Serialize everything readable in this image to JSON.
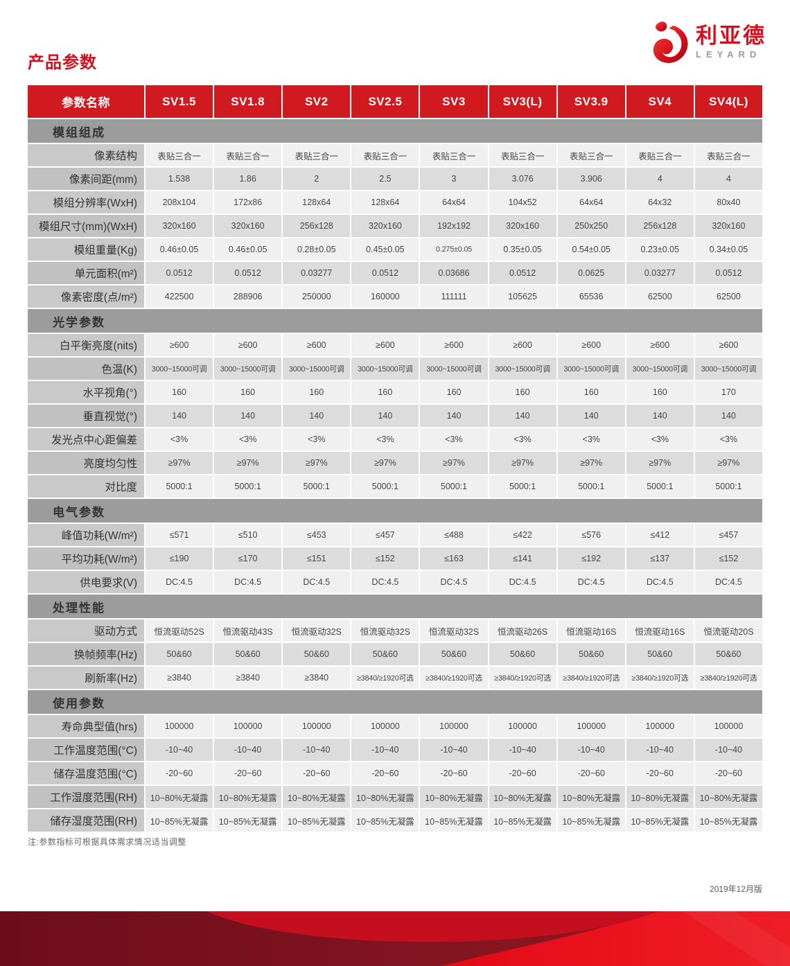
{
  "page": {
    "title": "产品参数",
    "note": "注:参数指标可根据具体需求情况适当调整",
    "version": "2019年12月版"
  },
  "logo": {
    "cn": "利亚德",
    "en": "LEYARD"
  },
  "colors": {
    "brand_red": "#d30f1e",
    "header_red": "#d11920",
    "section_gray": "#9c9c9c",
    "row_light": "#f0f0f0",
    "row_dark": "#dcdcdc",
    "label_light": "#c9c9c9",
    "label_dark": "#c1c1c1",
    "wave_dark_red": "#7a1220",
    "wave_bright_red": "#e30917"
  },
  "table": {
    "header": [
      "参数名称",
      "SV1.5",
      "SV1.8",
      "SV2",
      "SV2.5",
      "SV3",
      "SV3(L)",
      "SV3.9",
      "SV4",
      "SV4(L)"
    ],
    "sections": [
      {
        "title": "模组组成",
        "rows": [
          {
            "label": "像素结构",
            "values": [
              "表贴三合一",
              "表贴三合一",
              "表贴三合一",
              "表贴三合一",
              "表贴三合一",
              "表贴三合一",
              "表贴三合一",
              "表贴三合一",
              "表贴三合一"
            ]
          },
          {
            "label": "像素间距(mm)",
            "values": [
              "1.538",
              "1.86",
              "2",
              "2.5",
              "3",
              "3.076",
              "3.906",
              "4",
              "4"
            ]
          },
          {
            "label": "模组分辨率(WxH)",
            "values": [
              "208x104",
              "172x86",
              "128x64",
              "128x64",
              "64x64",
              "104x52",
              "64x64",
              "64x32",
              "80x40"
            ]
          },
          {
            "label": "模组尺寸(mm)(WxH)",
            "values": [
              "320x160",
              "320x160",
              "256x128",
              "320x160",
              "192x192",
              "320x160",
              "250x250",
              "256x128",
              "320x160"
            ]
          },
          {
            "label": "模组重量(Kg)",
            "values": [
              "0.46±0.05",
              "0.46±0.05",
              "0.28±0.05",
              "0.45±0.05",
              "0.275±0.05",
              "0.35±0.05",
              "0.54±0.05",
              "0.23±0.05",
              "0.34±0.05"
            ]
          },
          {
            "label": "单元面积(m²)",
            "values": [
              "0.0512",
              "0.0512",
              "0.03277",
              "0.0512",
              "0.03686",
              "0.0512",
              "0.0625",
              "0.03277",
              "0.0512"
            ]
          },
          {
            "label": "像素密度(点/m²)",
            "values": [
              "422500",
              "288906",
              "250000",
              "160000",
              "111111",
              "105625",
              "65536",
              "62500",
              "62500"
            ]
          }
        ]
      },
      {
        "title": "光学参数",
        "rows": [
          {
            "label": "白平衡亮度(nits)",
            "values": [
              "≥600",
              "≥600",
              "≥600",
              "≥600",
              "≥600",
              "≥600",
              "≥600",
              "≥600",
              "≥600"
            ]
          },
          {
            "label": "色温(K)",
            "values": [
              "3000~15000可调",
              "3000~15000可调",
              "3000~15000可调",
              "3000~15000可调",
              "3000~15000可调",
              "3000~15000可调",
              "3000~15000可调",
              "3000~15000可调",
              "3000~15000可调"
            ]
          },
          {
            "label": "水平视角(°)",
            "values": [
              "160",
              "160",
              "160",
              "160",
              "160",
              "160",
              "160",
              "160",
              "170"
            ]
          },
          {
            "label": "垂直视觉(°)",
            "values": [
              "140",
              "140",
              "140",
              "140",
              "140",
              "140",
              "140",
              "140",
              "140"
            ]
          },
          {
            "label": "发光点中心距偏差",
            "values": [
              "<3%",
              "<3%",
              "<3%",
              "<3%",
              "<3%",
              "<3%",
              "<3%",
              "<3%",
              "<3%"
            ]
          },
          {
            "label": "亮度均匀性",
            "values": [
              "≥97%",
              "≥97%",
              "≥97%",
              "≥97%",
              "≥97%",
              "≥97%",
              "≥97%",
              "≥97%",
              "≥97%"
            ]
          },
          {
            "label": "对比度",
            "values": [
              "5000:1",
              "5000:1",
              "5000:1",
              "5000:1",
              "5000:1",
              "5000:1",
              "5000:1",
              "5000:1",
              "5000:1"
            ]
          }
        ]
      },
      {
        "title": "电气参数",
        "rows": [
          {
            "label": "峰值功耗(W/m²)",
            "values": [
              "≤571",
              "≤510",
              "≤453",
              "≤457",
              "≤488",
              "≤422",
              "≤576",
              "≤412",
              "≤457"
            ]
          },
          {
            "label": "平均功耗(W/m²)",
            "values": [
              "≤190",
              "≤170",
              "≤151",
              "≤152",
              "≤163",
              "≤141",
              "≤192",
              "≤137",
              "≤152"
            ]
          },
          {
            "label": "供电要求(V)",
            "values": [
              "DC:4.5",
              "DC:4.5",
              "DC:4.5",
              "DC:4.5",
              "DC:4.5",
              "DC:4.5",
              "DC:4.5",
              "DC:4.5",
              "DC:4.5"
            ]
          }
        ]
      },
      {
        "title": "处理性能",
        "rows": [
          {
            "label": "驱动方式",
            "values": [
              "恒流驱动52S",
              "恒流驱动43S",
              "恒流驱动32S",
              "恒流驱动32S",
              "恒流驱动32S",
              "恒流驱动26S",
              "恒流驱动16S",
              "恒流驱动16S",
              "恒流驱动20S"
            ]
          },
          {
            "label": "换帧频率(Hz)",
            "values": [
              "50&60",
              "50&60",
              "50&60",
              "50&60",
              "50&60",
              "50&60",
              "50&60",
              "50&60",
              "50&60"
            ]
          },
          {
            "label": "刷新率(Hz)",
            "values": [
              "≥3840",
              "≥3840",
              "≥3840",
              "≥3840/≥1920可选",
              "≥3840/≥1920可选",
              "≥3840/≥1920可选",
              "≥3840/≥1920可选",
              "≥3840/≥1920可选",
              "≥3840/≥1920可选"
            ]
          }
        ]
      },
      {
        "title": "使用参数",
        "rows": [
          {
            "label": "寿命典型值(hrs)",
            "values": [
              "100000",
              "100000",
              "100000",
              "100000",
              "100000",
              "100000",
              "100000",
              "100000",
              "100000"
            ]
          },
          {
            "label": "工作温度范围(°C)",
            "values": [
              "-10~40",
              "-10~40",
              "-10~40",
              "-10~40",
              "-10~40",
              "-10~40",
              "-10~40",
              "-10~40",
              "-10~40"
            ]
          },
          {
            "label": "储存温度范围(°C)",
            "values": [
              "-20~60",
              "-20~60",
              "-20~60",
              "-20~60",
              "-20~60",
              "-20~60",
              "-20~60",
              "-20~60",
              "-20~60"
            ]
          },
          {
            "label": "工作湿度范围(RH)",
            "values": [
              "10~80%无凝露",
              "10~80%无凝露",
              "10~80%无凝露",
              "10~80%无凝露",
              "10~80%无凝露",
              "10~80%无凝露",
              "10~80%无凝露",
              "10~80%无凝露",
              "10~80%无凝露"
            ]
          },
          {
            "label": "储存湿度范围(RH)",
            "values": [
              "10~85%无凝露",
              "10~85%无凝露",
              "10~85%无凝露",
              "10~85%无凝露",
              "10~85%无凝露",
              "10~85%无凝露",
              "10~85%无凝露",
              "10~85%无凝露",
              "10~85%无凝露"
            ]
          }
        ]
      }
    ]
  }
}
